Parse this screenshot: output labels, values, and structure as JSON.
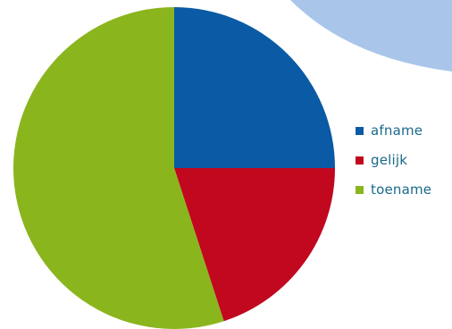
{
  "chart_data": {
    "type": "pie",
    "title": "",
    "start_angle_deg": 0,
    "direction": "clockwise",
    "legend_position": "right",
    "series": [
      {
        "name": "afname",
        "value": 25,
        "color": "#0a5aa5"
      },
      {
        "name": "gelijk",
        "value": 20,
        "color": "#c1081f"
      },
      {
        "name": "toename",
        "value": 55,
        "color": "#8bb51d"
      }
    ]
  },
  "decoration": {
    "corner_arc_color": "#a9c6ea"
  }
}
